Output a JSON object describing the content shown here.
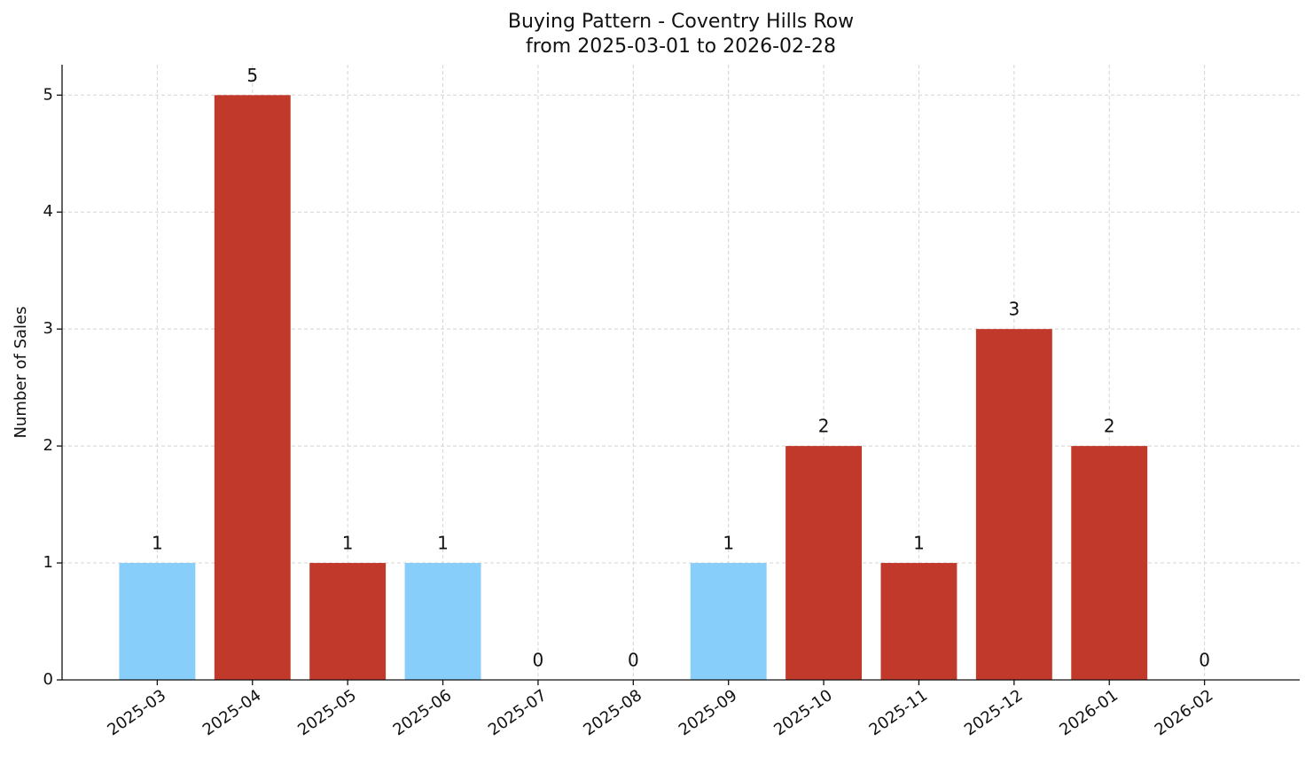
{
  "chart_data": {
    "type": "bar",
    "title": "Buying Pattern - Coventry Hills Row",
    "subtitle": "from 2025-03-01 to 2026-02-28",
    "y_label": "Number of Sales",
    "categories": [
      "2025-03",
      "2025-04",
      "2025-05",
      "2025-06",
      "2025-07",
      "2025-08",
      "2025-09",
      "2025-10",
      "2025-11",
      "2025-12",
      "2026-01",
      "2026-02"
    ],
    "values": [
      1,
      5,
      1,
      1,
      0,
      0,
      1,
      2,
      1,
      3,
      2,
      0
    ],
    "colors": [
      "#87cefa",
      "#c0392b",
      "#c0392b",
      "#87cefa",
      "#87cefa",
      "#87cefa",
      "#87cefa",
      "#c0392b",
      "#c0392b",
      "#c0392b",
      "#c0392b",
      "#87cefa"
    ],
    "ylim": [
      0,
      5.26
    ],
    "yticks": [
      0,
      1,
      2,
      3,
      4,
      5
    ],
    "grid": true
  }
}
